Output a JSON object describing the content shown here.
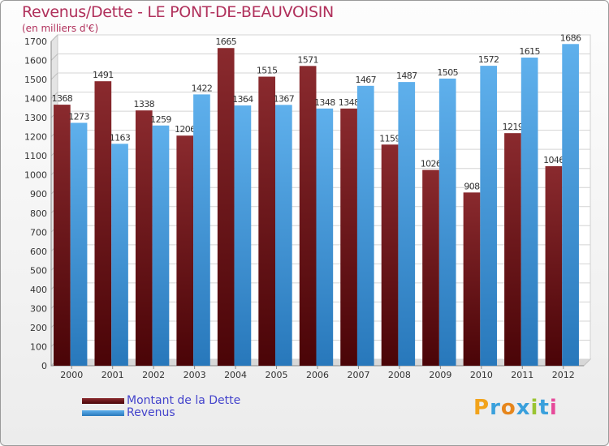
{
  "title": "Revenus/Dette - LE PONT-DE-BEAUVOISIN",
  "subtitle": "(en milliers d'€)",
  "colors": {
    "dette": "#6e0f14",
    "revenus": "#3f93d6",
    "title": "#b0305b",
    "legend_text": "#4444cc"
  },
  "chart_data": {
    "type": "bar",
    "categories": [
      "2000",
      "2001",
      "2002",
      "2003",
      "2004",
      "2005",
      "2006",
      "2007",
      "2008",
      "2009",
      "2010",
      "2011",
      "2012"
    ],
    "series": [
      {
        "name": "Montant de la Dette",
        "values": [
          1368,
          1491,
          1338,
          1206,
          1665,
          1515,
          1571,
          1348,
          1159,
          1026,
          908,
          1219,
          1046
        ]
      },
      {
        "name": "Revenus",
        "values": [
          1273,
          1163,
          1259,
          1422,
          1364,
          1367,
          1348,
          1467,
          1487,
          1505,
          1572,
          1615,
          1686
        ]
      }
    ],
    "ylim": [
      0,
      1700
    ],
    "yticks": [
      0,
      100,
      200,
      300,
      400,
      500,
      600,
      700,
      800,
      900,
      1000,
      1100,
      1200,
      1300,
      1400,
      1500,
      1600,
      1700
    ],
    "grid": true,
    "legend_position": "bottom-left"
  },
  "legend": [
    {
      "label": "Montant de la Dette"
    },
    {
      "label": "Revenus"
    }
  ],
  "logo": {
    "text": "Proxiti",
    "icon": "proxiti-logo"
  }
}
